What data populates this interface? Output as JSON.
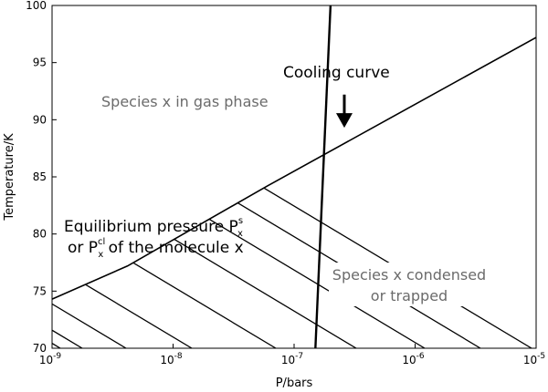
{
  "chart_data": {
    "type": "line",
    "xlabel": "P/bars",
    "ylabel": "Temperature/K",
    "xscale": "log",
    "xlim": [
      1e-09,
      1e-05
    ],
    "ylim": [
      70,
      100
    ],
    "x_ticks": [
      {
        "value": 1e-09,
        "base": "10",
        "exp": "-9"
      },
      {
        "value": 1e-08,
        "base": "10",
        "exp": "-8"
      },
      {
        "value": 1e-07,
        "base": "10",
        "exp": "-7"
      },
      {
        "value": 1e-06,
        "base": "10",
        "exp": "-6"
      },
      {
        "value": 1e-05,
        "base": "10",
        "exp": "-5"
      }
    ],
    "y_ticks": [
      70,
      75,
      80,
      85,
      90,
      95,
      100
    ],
    "grid": false,
    "series": [
      {
        "key": "cooling",
        "x": [
          1.5e-07,
          2e-07
        ],
        "y": [
          70,
          100
        ]
      },
      {
        "key": "equilibrium",
        "x": [
          1e-09,
          4.2e-09,
          6e-08,
          1e-05
        ],
        "y": [
          74.3,
          77.2,
          84.2,
          97.2
        ]
      }
    ],
    "regions": [
      {
        "key": "condensed",
        "fill": "hatched",
        "below_series": "equilibrium"
      }
    ],
    "annotations": {
      "cooling_label": "Cooling curve",
      "gas_phase": "Species x in gas phase",
      "equilibrium_line1_pre": "Equilibrium pressure P",
      "equilibrium_line1_sup": "s",
      "equilibrium_line1_sub": "x",
      "equilibrium_line2_pre": "or P",
      "equilibrium_line2_sup": "cl",
      "equilibrium_line2_sub": "x",
      "equilibrium_line2_post": " of the molecule x",
      "condensed_line1": "Species x condensed",
      "condensed_line2": "or trapped"
    },
    "arrow": {
      "direction": "down",
      "x": 2.6e-07,
      "y_from": 92.2,
      "y_to": 89.3
    }
  }
}
